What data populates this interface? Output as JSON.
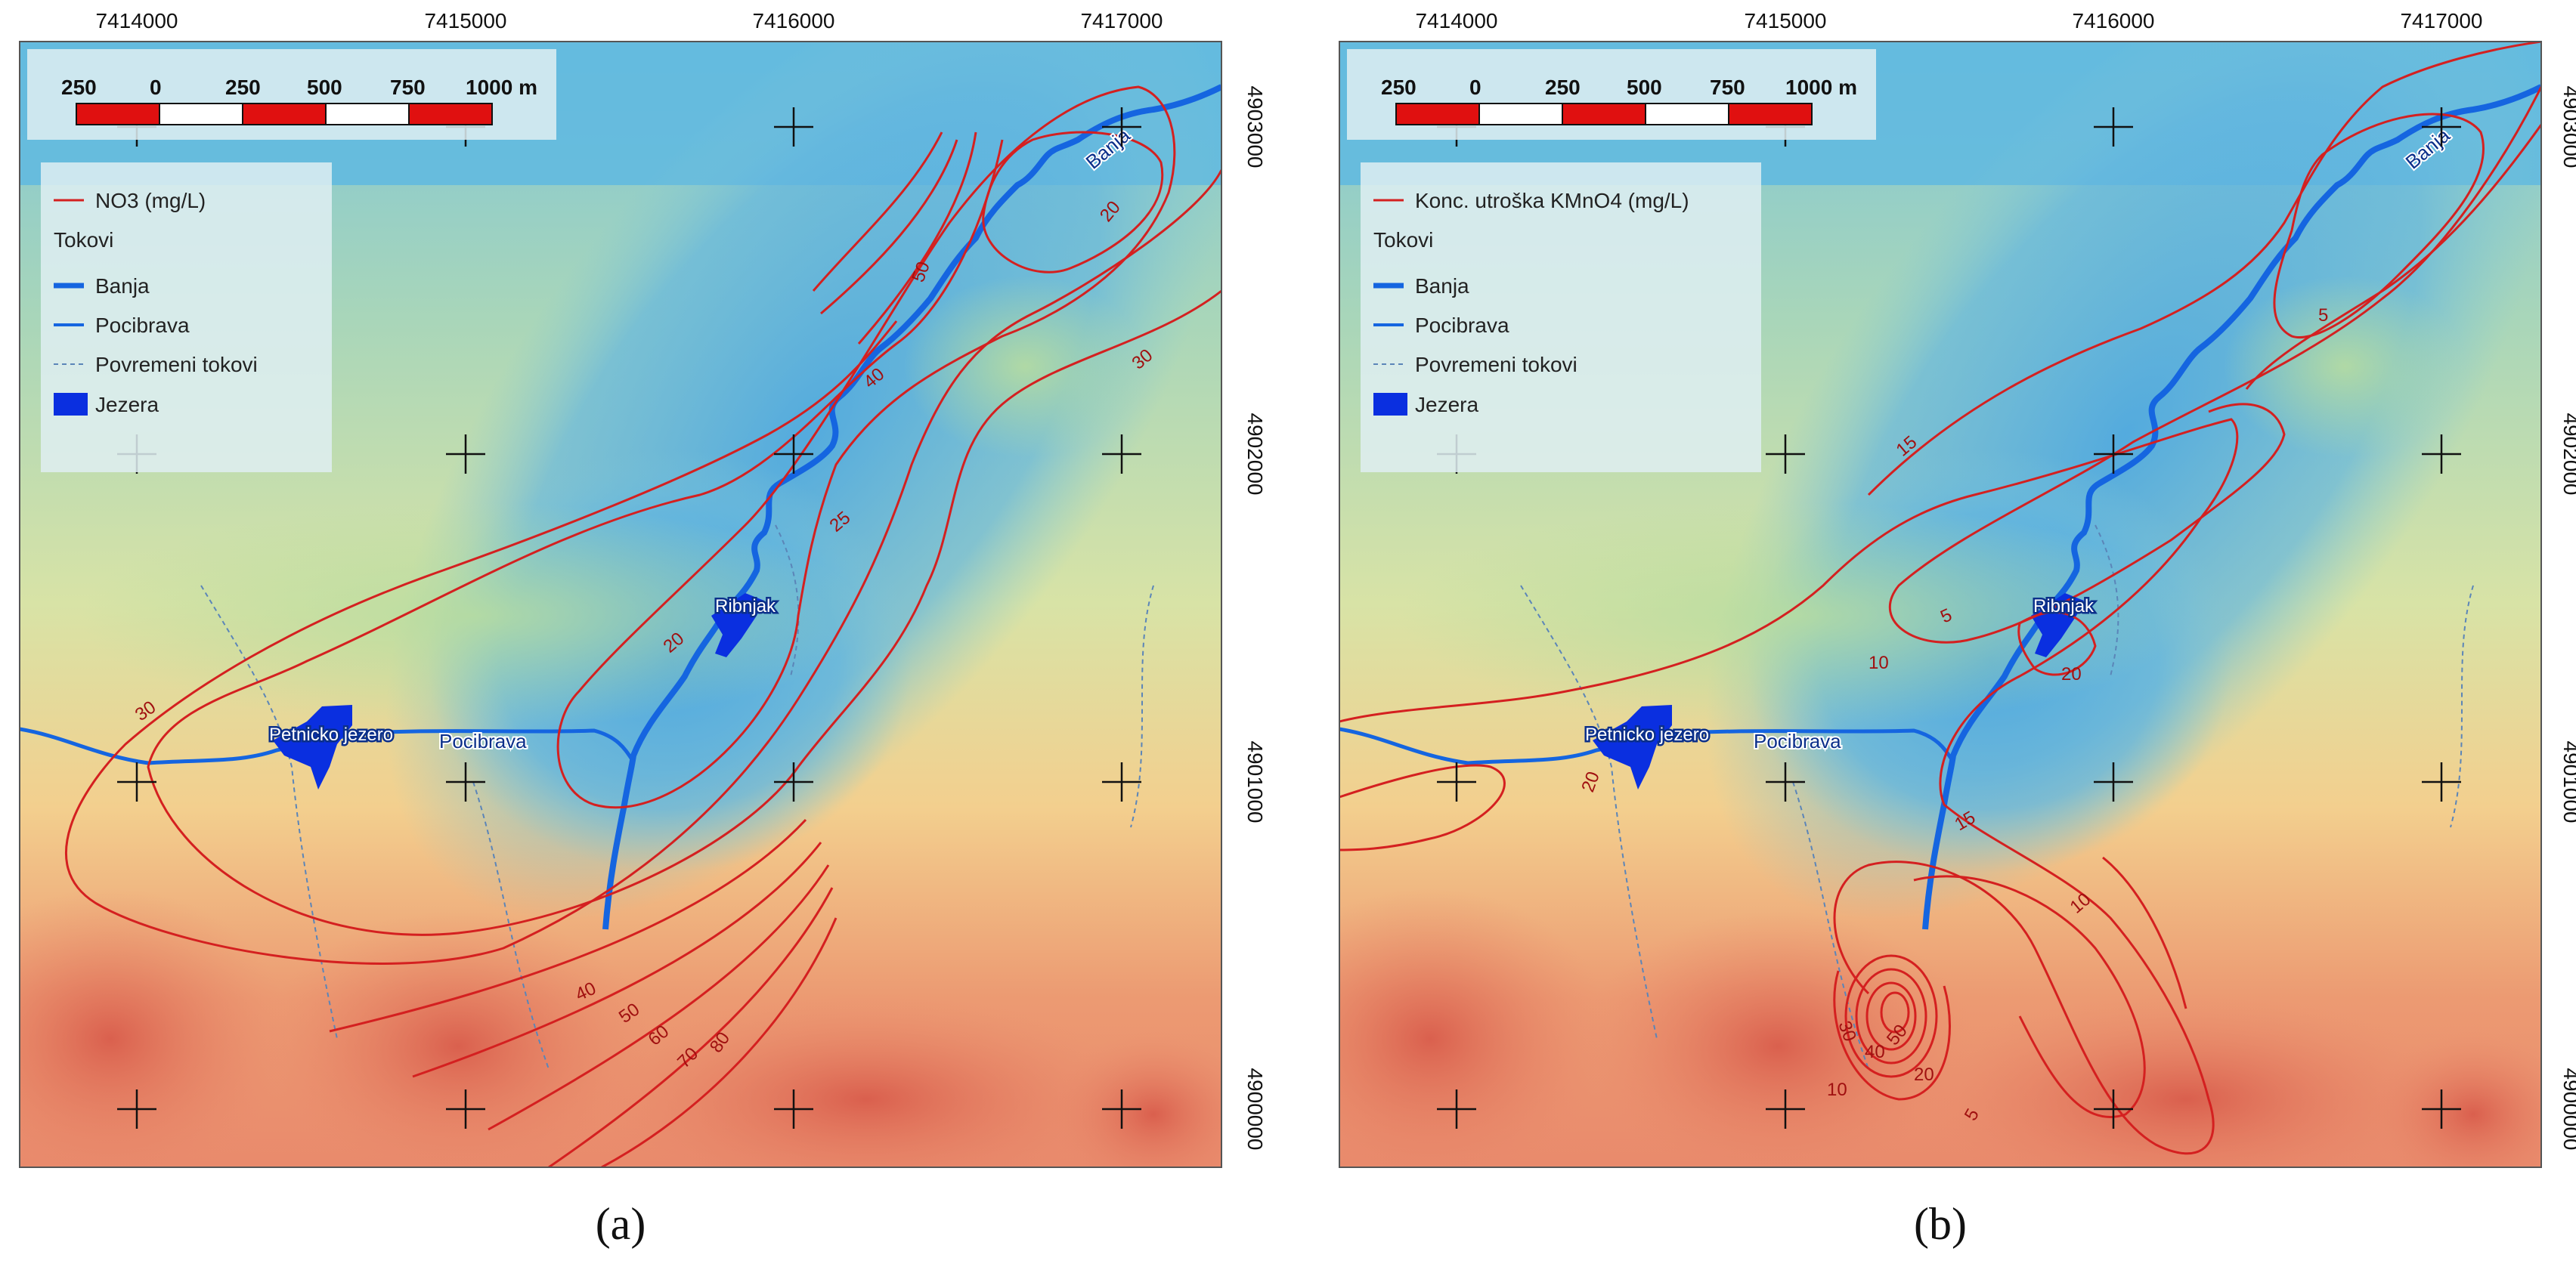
{
  "panels": [
    {
      "caption": "(a)",
      "x_ticks": [
        "7414000",
        "7415000",
        "7416000",
        "7417000"
      ],
      "y_ticks": [
        "4903000",
        "4902000",
        "4901000",
        "4900000"
      ],
      "scalebar": {
        "labels": [
          "250",
          "0",
          "250",
          "500",
          "750",
          "1000 m"
        ]
      },
      "legend": {
        "contour_label": "NO3 (mg/L)",
        "group_title": "Tokovi",
        "items": [
          "Banja",
          "Pocibrava",
          "Povremeni tokovi",
          "Jezera"
        ]
      },
      "places": {
        "lake": "Petnicko jezero",
        "pond": "Ribnjak",
        "stream": "Pocibrava",
        "river": "Banja"
      },
      "contour_labels": [
        "50",
        "40",
        "25",
        "20",
        "20",
        "30",
        "30",
        "40",
        "50",
        "60",
        "70",
        "80"
      ]
    },
    {
      "caption": "(b)",
      "x_ticks": [
        "7414000",
        "7415000",
        "7416000",
        "7417000"
      ],
      "y_ticks": [
        "4903000",
        "4902000",
        "4901000",
        "4900000"
      ],
      "scalebar": {
        "labels": [
          "250",
          "0",
          "250",
          "500",
          "750",
          "1000 m"
        ]
      },
      "legend": {
        "contour_label": "Konc. utroška KMnO4 (mg/L)",
        "group_title": "Tokovi",
        "items": [
          "Banja",
          "Pocibrava",
          "Povremeni tokovi",
          "Jezera"
        ]
      },
      "places": {
        "lake": "Petnicko jezero",
        "pond": "Ribnjak",
        "stream": "Pocibrava",
        "river": "Banja"
      },
      "contour_labels": [
        "5",
        "15",
        "5",
        "10",
        "20",
        "20",
        "15",
        "10",
        "30",
        "40",
        "50",
        "20",
        "10",
        "5"
      ]
    }
  ],
  "colors": {
    "contour": "#d42020",
    "river": "#1565e0",
    "lake": "#0a2fe0",
    "scale_red": "#e01010"
  },
  "icon_names": [
    "crosshair-icon",
    "legend-line-icon",
    "lake-swatch-icon"
  ]
}
